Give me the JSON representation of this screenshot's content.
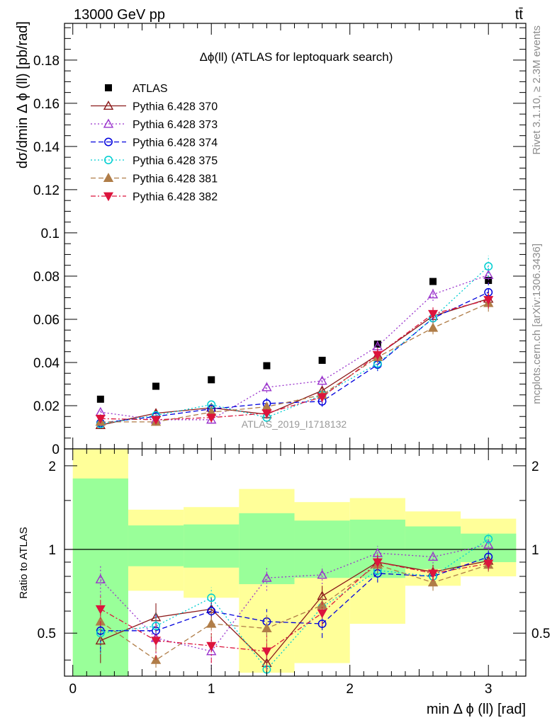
{
  "header": {
    "energy_label": "13000 GeV pp",
    "process_label": "tt̄"
  },
  "side_labels": {
    "rivet": "Rivet 3.1.10, ≥ 2.3M events",
    "mcplots": "mcplots.cern.ch [arXiv:1306.3436]"
  },
  "chart_data": [
    {
      "type": "scatter",
      "title": "Δϕ(ll) (ATLAS for leptoquark search)",
      "ylabel": "dσ/dmin Δ ϕ (ll) [pb/rad]",
      "xlim": [
        -0.06,
        3.27
      ],
      "ylim": [
        0,
        0.197
      ],
      "yticks": [
        0,
        0.02,
        0.04,
        0.06,
        0.08,
        0.1,
        0.12,
        0.14,
        0.16,
        0.18
      ],
      "ytick_labels": [
        "0",
        "0.02",
        "0.04",
        "0.06",
        "0.08",
        "0.1",
        "0.12",
        "0.14",
        "0.16",
        "0.18"
      ],
      "watermark": "ATLAS_2019_I1718132",
      "x": [
        0.2,
        0.6,
        1.0,
        1.4,
        1.8,
        2.2,
        2.6,
        3.0
      ],
      "data": {
        "name": "ATLAS",
        "color": "#000000",
        "values": [
          0.023,
          0.029,
          0.032,
          0.0385,
          0.041,
          0.0485,
          0.0775,
          0.078
        ]
      },
      "series": [
        {
          "name": "Pythia 6.428 370",
          "color": "#8b1a1a",
          "marker": "triangle-open",
          "dash": "",
          "values": [
            0.011,
            0.0165,
            0.019,
            0.016,
            0.027,
            0.0435,
            0.0615,
            0.0695
          ],
          "err": [
            0.0015,
            0.0018,
            0.0018,
            0.002,
            0.002,
            0.0025,
            0.003,
            0.004
          ]
        },
        {
          "name": "Pythia 6.428 373",
          "color": "#9932cc",
          "marker": "triangle-open",
          "dash": "2,3",
          "values": [
            0.017,
            0.0135,
            0.0135,
            0.0285,
            0.0315,
            0.0475,
            0.0715,
            0.0805
          ],
          "err": [
            0.0015,
            0.0018,
            0.0018,
            0.0025,
            0.0025,
            0.003,
            0.003,
            0.004
          ]
        },
        {
          "name": "Pythia 6.428 374",
          "color": "#0000dd",
          "marker": "circle-open",
          "dash": "7,4",
          "values": [
            0.012,
            0.015,
            0.0185,
            0.021,
            0.022,
            0.039,
            0.0605,
            0.0725
          ],
          "err": [
            0.0015,
            0.0018,
            0.0018,
            0.0025,
            0.0025,
            0.003,
            0.003,
            0.004
          ]
        },
        {
          "name": "Pythia 6.428 375",
          "color": "#00ced1",
          "marker": "circle-open",
          "dash": "2,3",
          "values": [
            0.0115,
            0.0155,
            0.0205,
            0.0145,
            0.025,
            0.0395,
            0.0605,
            0.0845
          ],
          "err": [
            0.0015,
            0.0018,
            0.0018,
            0.002,
            0.0025,
            0.003,
            0.003,
            0.005
          ]
        },
        {
          "name": "Pythia 6.428 381",
          "color": "#b07d48",
          "marker": "triangle-filled",
          "dash": "7,4",
          "values": [
            0.0125,
            0.0125,
            0.017,
            0.0195,
            0.025,
            0.0425,
            0.056,
            0.0675
          ],
          "err": [
            0.0015,
            0.0018,
            0.0018,
            0.002,
            0.0025,
            0.003,
            0.003,
            0.004
          ]
        },
        {
          "name": "Pythia 6.428 382",
          "color": "#dc143c",
          "marker": "triangle-down-filled",
          "dash": "7,3,2,3",
          "values": [
            0.014,
            0.0135,
            0.0145,
            0.0165,
            0.024,
            0.0435,
            0.0625,
            0.069
          ],
          "err": [
            0.0015,
            0.0018,
            0.0018,
            0.002,
            0.0025,
            0.003,
            0.003,
            0.004
          ]
        }
      ]
    },
    {
      "type": "scatter",
      "title": "",
      "ylabel": "Ratio to ATLAS",
      "xlabel": "min Δ ϕ (ll) [rad]",
      "xlim": [
        -0.06,
        3.27
      ],
      "ylim": [
        0.35,
        2.3
      ],
      "ylog": true,
      "yticks": [
        0.5,
        1,
        2
      ],
      "ytick_labels": [
        "0.5",
        "1",
        "2"
      ],
      "xticks": [
        0,
        1,
        2,
        3
      ],
      "xtick_labels": [
        "0",
        "1",
        "2",
        "3"
      ],
      "bins": [
        [
          0.0,
          0.4
        ],
        [
          0.4,
          0.8
        ],
        [
          0.8,
          1.2
        ],
        [
          1.2,
          1.6
        ],
        [
          1.6,
          2.0
        ],
        [
          2.0,
          2.4
        ],
        [
          2.4,
          2.8
        ],
        [
          2.8,
          3.2
        ]
      ],
      "band_inner": {
        "color": "#99ff99",
        "low": [
          0.3,
          0.87,
          0.86,
          0.75,
          0.79,
          0.79,
          0.85,
          0.9
        ],
        "high": [
          1.8,
          1.22,
          1.23,
          1.35,
          1.27,
          1.28,
          1.21,
          1.14
        ]
      },
      "band_outer": {
        "color": "#ffff99",
        "low": [
          0.3,
          0.71,
          0.67,
          0.36,
          0.39,
          0.54,
          0.74,
          0.8
        ],
        "high": [
          2.4,
          1.39,
          1.42,
          1.65,
          1.48,
          1.53,
          1.37,
          1.29
        ]
      },
      "x": [
        0.2,
        0.6,
        1.0,
        1.4,
        1.8,
        2.2,
        2.6,
        3.0
      ],
      "series": [
        {
          "name": "Pythia 6.428 370",
          "color": "#8b1a1a",
          "marker": "triangle-open",
          "dash": "",
          "values": [
            0.47,
            0.57,
            0.61,
            0.39,
            0.68,
            0.9,
            0.83,
            0.91
          ],
          "err": [
            0.08,
            0.07,
            0.06,
            0.06,
            0.06,
            0.06,
            0.05,
            0.05
          ]
        },
        {
          "name": "Pythia 6.428 373",
          "color": "#9932cc",
          "marker": "triangle-open",
          "dash": "2,3",
          "values": [
            0.78,
            0.48,
            0.43,
            0.79,
            0.81,
            0.97,
            0.94,
            1.04
          ],
          "err": [
            0.1,
            0.07,
            0.06,
            0.08,
            0.06,
            0.06,
            0.05,
            0.05
          ]
        },
        {
          "name": "Pythia 6.428 374",
          "color": "#0000dd",
          "marker": "circle-open",
          "dash": "7,4",
          "values": [
            0.51,
            0.51,
            0.6,
            0.55,
            0.54,
            0.82,
            0.8,
            0.94
          ],
          "err": [
            0.08,
            0.07,
            0.06,
            0.06,
            0.06,
            0.06,
            0.05,
            0.05
          ]
        },
        {
          "name": "Pythia 6.428 375",
          "color": "#00ced1",
          "marker": "circle-open",
          "dash": "2,3",
          "values": [
            0.5,
            0.53,
            0.67,
            0.37,
            0.62,
            0.84,
            0.8,
            1.09
          ],
          "err": [
            0.08,
            0.07,
            0.06,
            0.06,
            0.06,
            0.06,
            0.05,
            0.05
          ]
        },
        {
          "name": "Pythia 6.428 381",
          "color": "#b07d48",
          "marker": "triangle-filled",
          "dash": "7,4",
          "values": [
            0.55,
            0.4,
            0.54,
            0.52,
            0.63,
            0.88,
            0.76,
            0.88
          ],
          "err": [
            0.08,
            0.07,
            0.06,
            0.06,
            0.06,
            0.06,
            0.05,
            0.05
          ]
        },
        {
          "name": "Pythia 6.428 382",
          "color": "#dc143c",
          "marker": "triangle-down-filled",
          "dash": "7,3,2,3",
          "values": [
            0.61,
            0.47,
            0.45,
            0.43,
            0.59,
            0.9,
            0.82,
            0.89
          ],
          "err": [
            0.08,
            0.07,
            0.06,
            0.06,
            0.06,
            0.06,
            0.05,
            0.05
          ]
        }
      ]
    }
  ]
}
